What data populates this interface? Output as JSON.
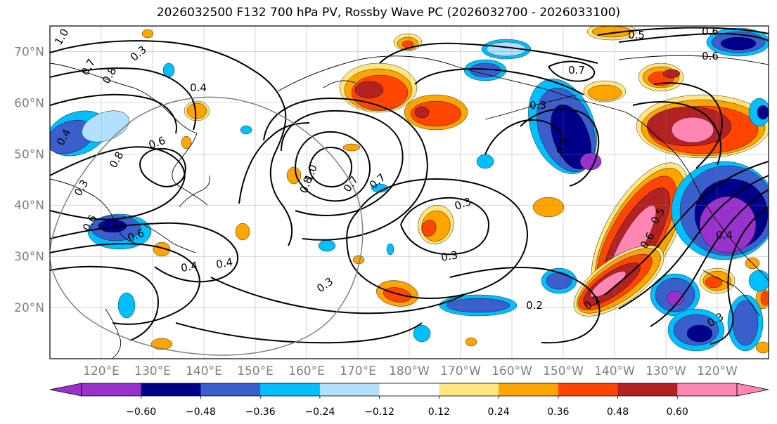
{
  "title": "2026032500 F132 700 hPa PV, Rossby Wave PC (2026032700 - 2026033100)",
  "map": {
    "projection": "cylindrical",
    "lon_range": [
      "110°E",
      "110°W"
    ],
    "lat_range": [
      10,
      75
    ],
    "gridlines": true,
    "lat_labels": [
      "70°N",
      "60°N",
      "50°N",
      "40°N",
      "30°N",
      "20°N"
    ],
    "lon_labels": [
      "120°E",
      "130°E",
      "140°E",
      "150°E",
      "160°E",
      "170°E",
      "180°W",
      "170°W",
      "160°W",
      "150°W",
      "140°W",
      "130°W",
      "120°W"
    ],
    "contour_labels": [
      "1.0",
      "0.8",
      "0.7",
      "0.6",
      "0.4",
      "0.6",
      "0.4",
      "0.3",
      "0.5",
      "0.6",
      "0.7",
      "0.3",
      "0.4",
      "0.8",
      "1.0",
      "0.7",
      "0.8",
      "0.3",
      "0.3",
      "0.4",
      "0.3",
      "0.5",
      "0.7",
      "0.6",
      "0.8",
      "0.6",
      "0.4",
      "0.2",
      "0.2",
      "0.3",
      "0.6",
      "0.3"
    ]
  },
  "colorbar": {
    "extend": "both",
    "colors": [
      "#9932cc",
      "#00008b",
      "#3a5fcd",
      "#00bfff",
      "#b3e0ff",
      "#ffffff",
      "#ffe680",
      "#ffa500",
      "#ff4500",
      "#b22222",
      "#ff85b3"
    ],
    "tick_labels": [
      "−0.60",
      "−0.48",
      "−0.36",
      "−0.24",
      "−0.12",
      "0.12",
      "0.24",
      "0.36",
      "0.48",
      "0.60"
    ]
  }
}
